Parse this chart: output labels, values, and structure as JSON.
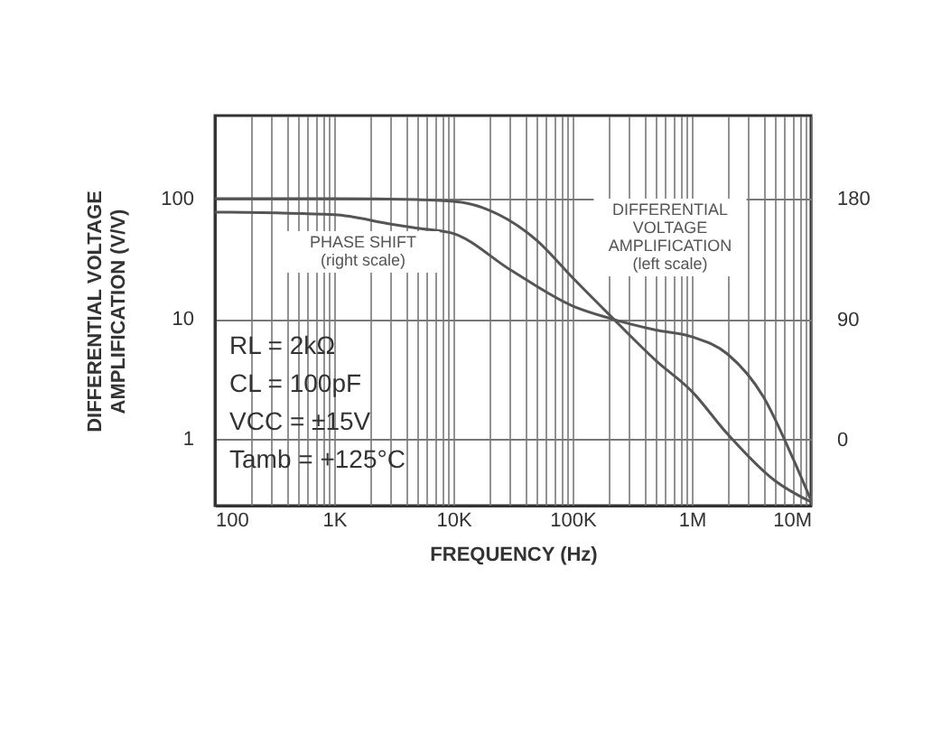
{
  "chart_data": {
    "type": "line",
    "xlabel": "FREQUENCY (Hz)",
    "ylabel": "DIFFERENTIAL VOLTAGE AMPLIFICATION (V/V)",
    "x": [
      100,
      1000,
      5000,
      10000,
      20000,
      50000,
      100000,
      200000,
      500000,
      1000000,
      2000000,
      5000000,
      10000000
    ],
    "series": [
      {
        "name": "DIFFERENTIAL VOLTAGE AMPLIFICATION (left scale)",
        "color": "#555555",
        "values": [
          100,
          100,
          98,
          95,
          80,
          45,
          22,
          11,
          4.5,
          2.5,
          1.1,
          0.45,
          0.3
        ]
      },
      {
        "name": "PHASE SHIFT (right scale)",
        "color": "#555555",
        "axis": "y2",
        "x": [
          100,
          1000,
          3000,
          5000,
          10000,
          30000,
          100000,
          200000,
          500000,
          1000000,
          2000000,
          4000000,
          7000000,
          10000000
        ],
        "values": [
          170,
          168,
          161,
          158,
          154,
          127,
          100,
          91,
          82,
          77,
          64,
          32,
          -13,
          -45
        ]
      }
    ],
    "annotations": [
      "RL = 2kΩ",
      "CL = 100pF",
      "VCC = ±15V",
      "Tamb = +125°C"
    ],
    "log": "xy",
    "xlim": [
      100,
      10000000
    ],
    "xticks": [
      {
        "value": 100,
        "label": "100"
      },
      {
        "value": 200,
        "label": null
      },
      {
        "value": 300,
        "label": null
      },
      {
        "value": 400,
        "label": null
      },
      {
        "value": 500,
        "label": null
      },
      {
        "value": 600,
        "label": null
      },
      {
        "value": 700,
        "label": null
      },
      {
        "value": 800,
        "label": null
      },
      {
        "value": 900,
        "label": null
      },
      {
        "value": 1000,
        "label": "1K"
      },
      {
        "value": 2000,
        "label": null
      },
      {
        "value": 3000,
        "label": null
      },
      {
        "value": 4000,
        "label": null
      },
      {
        "value": 5000,
        "label": null
      },
      {
        "value": 6000,
        "label": null
      },
      {
        "value": 7000,
        "label": null
      },
      {
        "value": 8000,
        "label": null
      },
      {
        "value": 9000,
        "label": null
      },
      {
        "value": 10000,
        "label": "10K"
      },
      {
        "value": 20000,
        "label": null
      },
      {
        "value": 30000,
        "label": null
      },
      {
        "value": 40000,
        "label": null
      },
      {
        "value": 50000,
        "label": null
      },
      {
        "value": 60000,
        "label": null
      },
      {
        "value": 70000,
        "label": null
      },
      {
        "value": 80000,
        "label": null
      },
      {
        "value": 90000,
        "label": null
      },
      {
        "value": 100000,
        "label": "100K"
      },
      {
        "value": 200000,
        "label": null
      },
      {
        "value": 300000,
        "label": null
      },
      {
        "value": 400000,
        "label": null
      },
      {
        "value": 500000,
        "label": null
      },
      {
        "value": 600000,
        "label": null
      },
      {
        "value": 700000,
        "label": null
      },
      {
        "value": 800000,
        "label": null
      },
      {
        "value": 900000,
        "label": null
      },
      {
        "value": 1000000,
        "label": "1M"
      },
      {
        "value": 2000000,
        "label": null
      },
      {
        "value": 3000000,
        "label": null
      },
      {
        "value": 4000000,
        "label": null
      },
      {
        "value": 5000000,
        "label": null
      },
      {
        "value": 6000000,
        "label": null
      },
      {
        "value": 7000000,
        "label": null
      },
      {
        "value": 8000000,
        "label": null
      },
      {
        "value": 9000000,
        "label": null
      },
      {
        "value": 10000000,
        "label": "10M"
      }
    ],
    "ylim": [
      0.28,
      490
    ],
    "yticks": [
      1,
      10,
      100
    ],
    "y2lim": [
      -49,
      242
    ],
    "y2ticks": [
      0,
      90,
      180
    ],
    "grid": true,
    "legend": false,
    "marker": "none",
    "line_style": "solid"
  }
}
